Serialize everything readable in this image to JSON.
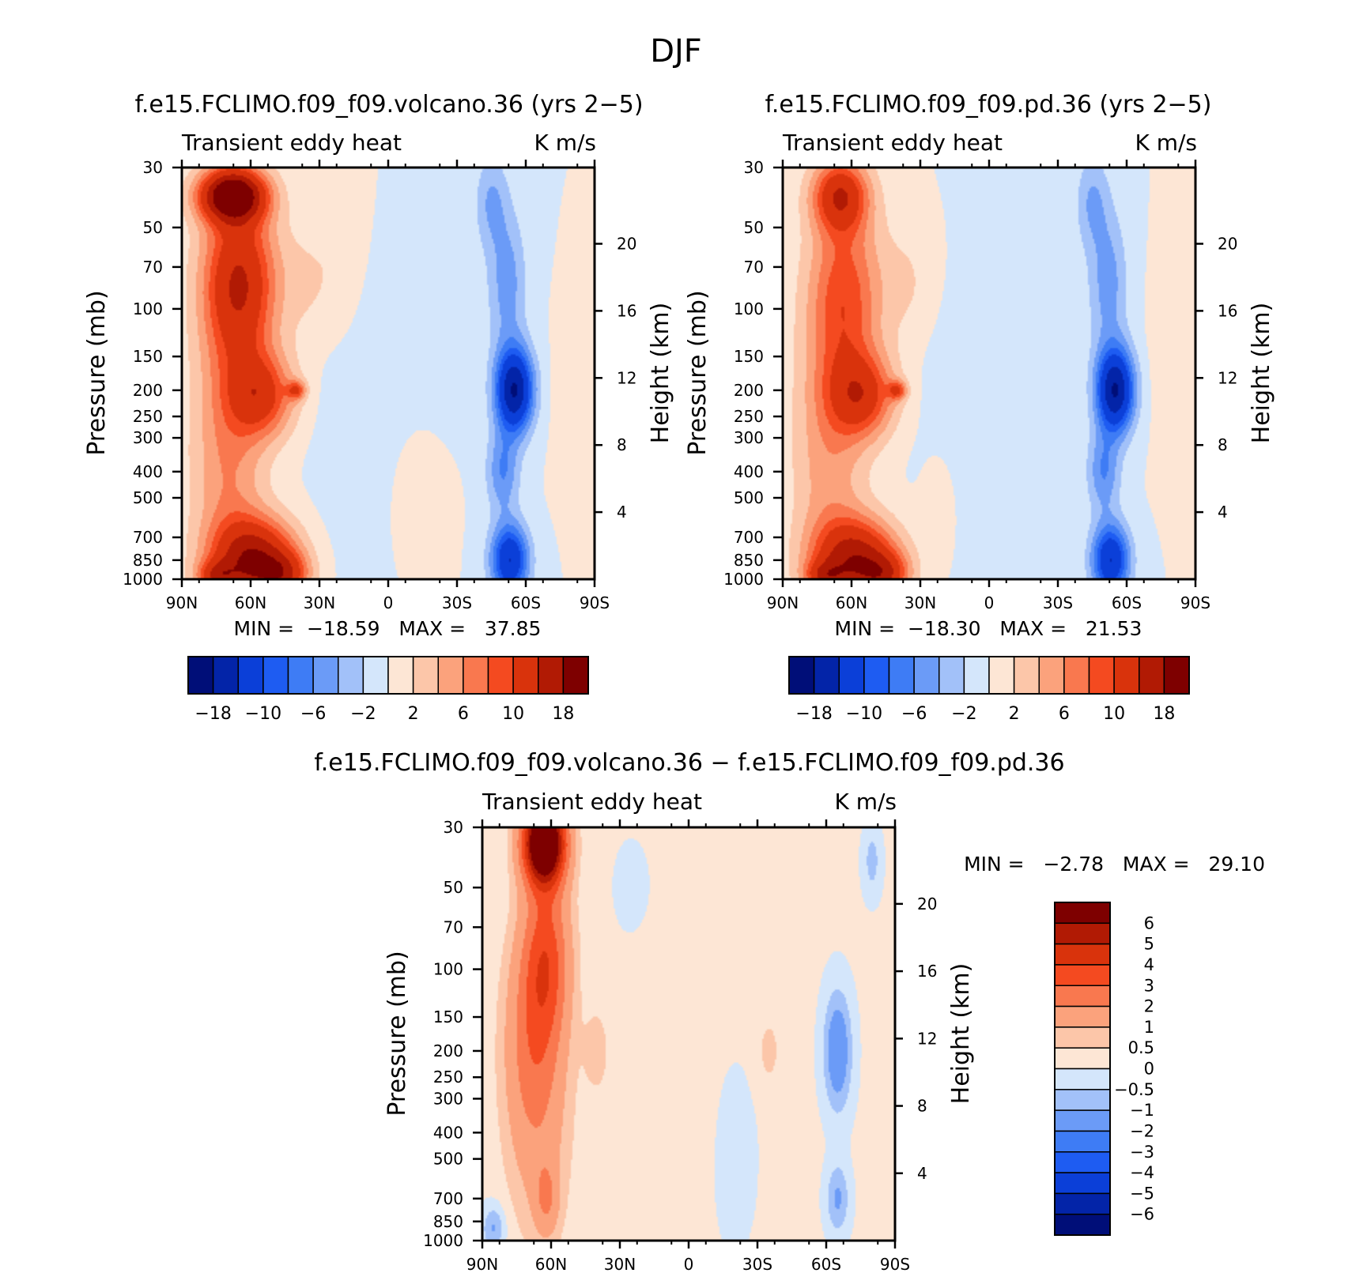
{
  "figure": {
    "title": "DJF"
  },
  "panels": [
    {
      "id": "volcano",
      "title": "f.e15.FCLIMO.f09_f09.volcano.36 (yrs 2−5)",
      "left_label": "Transient eddy heat",
      "right_label": "K m/s",
      "stats_text": "MIN =  −18.59   MAX =   37.85",
      "colorbar": {
        "orientation": "horizontal",
        "labels": [
          "−18",
          "−10",
          "−6",
          "−2",
          "2",
          "6",
          "10",
          "18"
        ]
      },
      "field": {
        "bg": 0,
        "blobs": [
          {
            "lat": 68,
            "p": 38,
            "a": 22,
            "sy": 14,
            "sp": 0.22
          },
          {
            "lat": 65,
            "p": 80,
            "a": 14,
            "sy": 16,
            "sp": 0.7
          },
          {
            "lat": 55,
            "p": 210,
            "a": 10,
            "sy": 14,
            "sp": 0.35
          },
          {
            "lat": 40,
            "p": 200,
            "a": 8,
            "sy": 4,
            "sp": 0.08
          },
          {
            "lat": 70,
            "p": 360,
            "a": 6,
            "sy": 16,
            "sp": 1.1
          },
          {
            "lat": 58,
            "p": 860,
            "a": 17,
            "sy": 18,
            "sp": 0.35
          },
          {
            "lat": 45,
            "p": 960,
            "a": 8,
            "sy": 10,
            "sp": 0.18
          },
          {
            "lat": 75,
            "p": 970,
            "a": 8,
            "sy": 8,
            "sp": 0.12
          },
          {
            "lat": 35,
            "p": 80,
            "a": 2,
            "sy": 12,
            "sp": 0.5
          },
          {
            "lat": 20,
            "p": 60,
            "a": 1.4,
            "sy": 10,
            "sp": 0.8
          },
          {
            "lat": -10,
            "p": 500,
            "a": 1.5,
            "sy": 12,
            "sp": 0.6
          },
          {
            "lat": -80,
            "p": 220,
            "a": 1.8,
            "sy": 7,
            "sp": 0.6
          },
          {
            "lat": -55,
            "p": 200,
            "a": -18,
            "sy": 8,
            "sp": 0.35
          },
          {
            "lat": -52,
            "p": 80,
            "a": -5,
            "sy": 8,
            "sp": 0.6
          },
          {
            "lat": -50,
            "p": 400,
            "a": -6,
            "sy": 7,
            "sp": 0.35
          },
          {
            "lat": -53,
            "p": 850,
            "a": -14,
            "sy": 8,
            "sp": 0.3
          },
          {
            "lat": -45,
            "p": 40,
            "a": -4,
            "sy": 7,
            "sp": 0.4
          },
          {
            "lat": 10,
            "p": 300,
            "a": -1.5,
            "sy": 20,
            "sp": 1.2
          },
          {
            "lat": -20,
            "p": 100,
            "a": -1,
            "sy": 20,
            "sp": 0.8
          }
        ]
      }
    },
    {
      "id": "pd",
      "title": "f.e15.FCLIMO.f09_f09.pd.36 (yrs 2−5)",
      "left_label": "Transient eddy heat",
      "right_label": "K m/s",
      "stats_text": "MIN =  −18.30   MAX =   21.53",
      "colorbar": {
        "orientation": "horizontal",
        "labels": [
          "−18",
          "−10",
          "−6",
          "−2",
          "2",
          "6",
          "10",
          "18"
        ]
      },
      "field": {
        "bg": 0,
        "blobs": [
          {
            "lat": 65,
            "p": 38,
            "a": 12,
            "sy": 12,
            "sp": 0.3
          },
          {
            "lat": 63,
            "p": 90,
            "a": 9,
            "sy": 16,
            "sp": 0.8
          },
          {
            "lat": 55,
            "p": 210,
            "a": 10,
            "sy": 14,
            "sp": 0.35
          },
          {
            "lat": 40,
            "p": 200,
            "a": 8,
            "sy": 4,
            "sp": 0.08
          },
          {
            "lat": 70,
            "p": 360,
            "a": 5,
            "sy": 16,
            "sp": 1.1
          },
          {
            "lat": 58,
            "p": 860,
            "a": 16,
            "sy": 18,
            "sp": 0.35
          },
          {
            "lat": 45,
            "p": 960,
            "a": 8,
            "sy": 10,
            "sp": 0.18
          },
          {
            "lat": 72,
            "p": 970,
            "a": 7,
            "sy": 8,
            "sp": 0.12
          },
          {
            "lat": 35,
            "p": 80,
            "a": 2,
            "sy": 12,
            "sp": 0.5
          },
          {
            "lat": 20,
            "p": 500,
            "a": 1.5,
            "sy": 10,
            "sp": 0.6
          },
          {
            "lat": -80,
            "p": 150,
            "a": 2,
            "sy": 8,
            "sp": 0.7
          },
          {
            "lat": -55,
            "p": 200,
            "a": -18,
            "sy": 8,
            "sp": 0.35
          },
          {
            "lat": -52,
            "p": 80,
            "a": -5,
            "sy": 8,
            "sp": 0.6
          },
          {
            "lat": -50,
            "p": 400,
            "a": -6,
            "sy": 7,
            "sp": 0.35
          },
          {
            "lat": -53,
            "p": 850,
            "a": -14,
            "sy": 8,
            "sp": 0.3
          },
          {
            "lat": -45,
            "p": 40,
            "a": -4,
            "sy": 7,
            "sp": 0.4
          },
          {
            "lat": 10,
            "p": 300,
            "a": -1.5,
            "sy": 20,
            "sp": 1.2
          },
          {
            "lat": -20,
            "p": 100,
            "a": -1,
            "sy": 20,
            "sp": 0.8
          }
        ]
      }
    },
    {
      "id": "diff",
      "title": "f.e15.FCLIMO.f09_f09.volcano.36 − f.e15.FCLIMO.f09_f09.pd.36",
      "left_label": "Transient eddy heat",
      "right_label": "K m/s",
      "stats_text": "MIN =   −2.78   MAX =   29.10",
      "colorbar": {
        "orientation": "vertical",
        "labels": [
          "6",
          "5",
          "4",
          "3",
          "2",
          "1",
          "0.5",
          "0",
          "−0.5",
          "−1",
          "−2",
          "−3",
          "−4",
          "−5",
          "−6"
        ]
      },
      "field": {
        "bg": 0.1,
        "blobs": [
          {
            "lat": 63,
            "p": 34,
            "a": 9,
            "sy": 9,
            "sp": 0.35
          },
          {
            "lat": 62,
            "p": 90,
            "a": 3,
            "sy": 10,
            "sp": 0.7
          },
          {
            "lat": 68,
            "p": 180,
            "a": 2,
            "sy": 12,
            "sp": 0.9
          },
          {
            "lat": 65,
            "p": 420,
            "a": 0.9,
            "sy": 14,
            "sp": 1.0
          },
          {
            "lat": 62,
            "p": 700,
            "a": 1.5,
            "sy": 5,
            "sp": 0.3
          },
          {
            "lat": 40,
            "p": 200,
            "a": 0.6,
            "sy": 6,
            "sp": 0.4
          },
          {
            "lat": 10,
            "p": 300,
            "a": 0.4,
            "sy": 15,
            "sp": 1.0
          },
          {
            "lat": -35,
            "p": 200,
            "a": 0.6,
            "sy": 5,
            "sp": 0.3
          },
          {
            "lat": -65,
            "p": 200,
            "a": -1.8,
            "sy": 6,
            "sp": 0.5
          },
          {
            "lat": -65,
            "p": 700,
            "a": -1.2,
            "sy": 5,
            "sp": 0.3
          },
          {
            "lat": -80,
            "p": 40,
            "a": -0.8,
            "sy": 4,
            "sp": 0.3
          },
          {
            "lat": 85,
            "p": 900,
            "a": -1.2,
            "sy": 5,
            "sp": 0.2
          },
          {
            "lat": -20,
            "p": 500,
            "a": -0.3,
            "sy": 10,
            "sp": 0.8
          },
          {
            "lat": 25,
            "p": 50,
            "a": -0.3,
            "sy": 8,
            "sp": 0.4
          }
        ]
      }
    }
  ],
  "chart_data": [
    {
      "type": "heatmap",
      "title": "f.e15.FCLIMO.f09_f09.volcano.36 (yrs 2−5)",
      "variable": "Transient eddy heat",
      "units": "K m/s",
      "xlabel": "",
      "ylabel": "Pressure (mb)",
      "y2label": "Height (km)",
      "xticks": [
        "90N",
        "60N",
        "30N",
        "0",
        "30S",
        "60S",
        "90S"
      ],
      "xlim": [
        90,
        -90
      ],
      "yticks": [
        30,
        50,
        70,
        100,
        150,
        200,
        250,
        300,
        400,
        500,
        700,
        850,
        1000
      ],
      "ylim": [
        1000,
        30
      ],
      "yscale": "log",
      "y2ticks": [
        4,
        8,
        12,
        16,
        20
      ],
      "levels": [
        -18,
        -14,
        -10,
        -8,
        -6,
        -4,
        -2,
        0,
        2,
        4,
        6,
        8,
        10,
        14,
        18
      ],
      "min": -18.59,
      "max": 37.85
    },
    {
      "type": "heatmap",
      "title": "f.e15.FCLIMO.f09_f09.pd.36 (yrs 2−5)",
      "variable": "Transient eddy heat",
      "units": "K m/s",
      "xlabel": "",
      "ylabel": "Pressure (mb)",
      "y2label": "Height (km)",
      "xticks": [
        "90N",
        "60N",
        "30N",
        "0",
        "30S",
        "60S",
        "90S"
      ],
      "xlim": [
        90,
        -90
      ],
      "yticks": [
        30,
        50,
        70,
        100,
        150,
        200,
        250,
        300,
        400,
        500,
        700,
        850,
        1000
      ],
      "ylim": [
        1000,
        30
      ],
      "yscale": "log",
      "y2ticks": [
        4,
        8,
        12,
        16,
        20
      ],
      "levels": [
        -18,
        -14,
        -10,
        -8,
        -6,
        -4,
        -2,
        0,
        2,
        4,
        6,
        8,
        10,
        14,
        18
      ],
      "min": -18.3,
      "max": 21.53
    },
    {
      "type": "heatmap",
      "title": "f.e15.FCLIMO.f09_f09.volcano.36 − f.e15.FCLIMO.f09_f09.pd.36",
      "variable": "Transient eddy heat",
      "units": "K m/s",
      "xlabel": "",
      "ylabel": "Pressure (mb)",
      "y2label": "Height (km)",
      "xticks": [
        "90N",
        "60N",
        "30N",
        "0",
        "30S",
        "60S",
        "90S"
      ],
      "xlim": [
        90,
        -90
      ],
      "yticks": [
        30,
        50,
        70,
        100,
        150,
        200,
        250,
        300,
        400,
        500,
        700,
        850,
        1000
      ],
      "ylim": [
        1000,
        30
      ],
      "yscale": "log",
      "y2ticks": [
        4,
        8,
        12,
        16,
        20
      ],
      "levels": [
        -6,
        -5,
        -4,
        -3,
        -2,
        -1,
        -0.5,
        0,
        0.5,
        1,
        2,
        3,
        4,
        5,
        6
      ],
      "min": -2.78,
      "max": 29.1
    }
  ],
  "colormap": [
    "#000e78",
    "#0324a8",
    "#0b3fd8",
    "#1e5cf2",
    "#3e7cf5",
    "#6b9bf7",
    "#a2c1f9",
    "#d4e6fb",
    "#fde6d5",
    "#fcc6a9",
    "#fba27c",
    "#f9784f",
    "#f44a20",
    "#d9330c",
    "#b11a04",
    "#7e0000"
  ],
  "axes": {
    "ylabel": "Pressure (mb)",
    "y2label": "Height (km)",
    "xticks": [
      "90N",
      "60N",
      "30N",
      "0",
      "30S",
      "60S",
      "90S"
    ],
    "yticks": [
      "30",
      "50",
      "70",
      "100",
      "150",
      "200",
      "250",
      "300",
      "400",
      "500",
      "700",
      "850",
      "1000"
    ],
    "y2ticks": [
      "4",
      "8",
      "12",
      "16",
      "20"
    ]
  }
}
